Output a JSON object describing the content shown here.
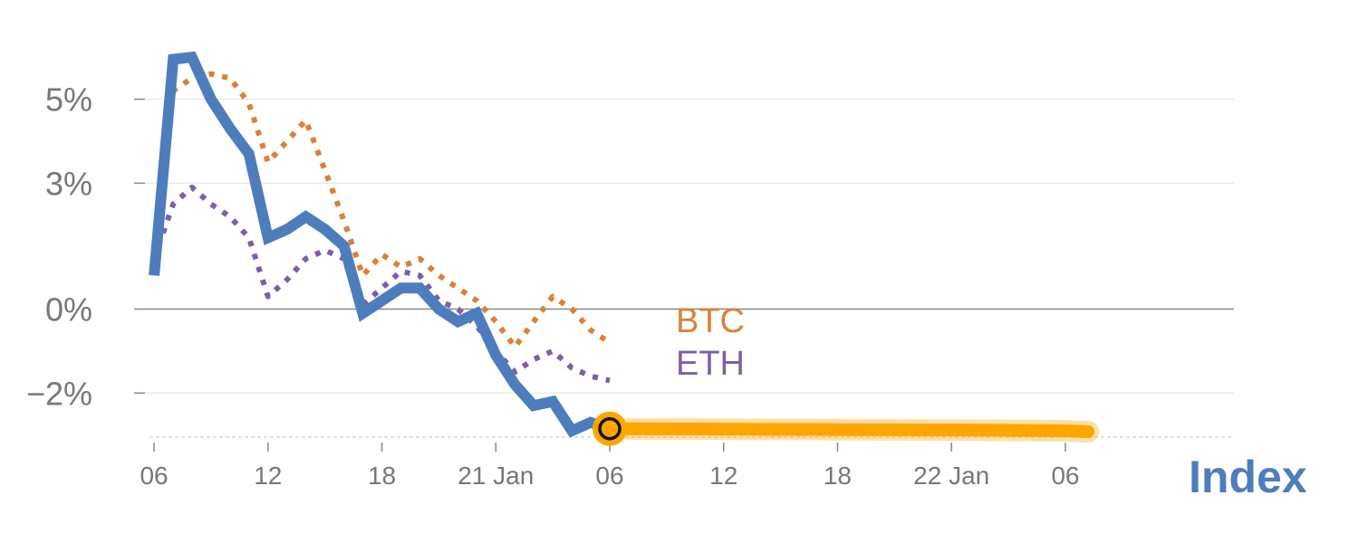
{
  "colors": {
    "index": "#4E7DBE",
    "btc": "#D98236",
    "eth": "#7D5EA6",
    "forecast": "#FFA500",
    "grid": "#E6E6E6",
    "zero": "#888888",
    "tick_text": "#777777"
  },
  "chart_data": {
    "type": "line",
    "title": "",
    "xlabel": "",
    "ylabel": "",
    "ylim": [
      -3.05,
      6.5
    ],
    "xlim": [
      -0.2,
      23.7
    ],
    "grid": true,
    "y_ticks": [
      {
        "value": 5,
        "label": "5%"
      },
      {
        "value": 3,
        "label": "3%"
      },
      {
        "value": 0,
        "label": "0%"
      },
      {
        "value": -2,
        "label": "−2%"
      }
    ],
    "x_ticks": [
      {
        "value": 0,
        "label": "06"
      },
      {
        "value": 2.5,
        "label": "12"
      },
      {
        "value": 5,
        "label": "18"
      },
      {
        "value": 7.5,
        "label": "21 Jan"
      },
      {
        "value": 10,
        "label": "06"
      },
      {
        "value": 12.5,
        "label": "12"
      },
      {
        "value": 15,
        "label": "18"
      },
      {
        "value": 17.5,
        "label": "22 Jan"
      },
      {
        "value": 20,
        "label": "06"
      }
    ],
    "series": [
      {
        "name": "Index",
        "key": "index",
        "style": "solid",
        "x": [
          0,
          0.42,
          0.83,
          1.25,
          1.67,
          2.08,
          2.5,
          2.92,
          3.33,
          3.75,
          4.17,
          4.58,
          5.0,
          5.42,
          5.83,
          6.25,
          6.67,
          7.08,
          7.5,
          7.92,
          8.33,
          8.75,
          9.17,
          9.58,
          10.0
        ],
        "y": [
          0.8,
          5.95,
          6.0,
          5.0,
          4.3,
          3.7,
          1.7,
          1.9,
          2.2,
          1.9,
          1.5,
          -0.1,
          0.2,
          0.5,
          0.5,
          0.0,
          -0.3,
          -0.1,
          -1.1,
          -1.8,
          -2.3,
          -2.2,
          -2.9,
          -2.7,
          -2.85
        ]
      },
      {
        "name": "BTC",
        "key": "btc",
        "style": "dotted",
        "x": [
          0,
          0.42,
          0.83,
          1.25,
          1.67,
          2.08,
          2.5,
          2.92,
          3.33,
          3.75,
          4.17,
          4.58,
          5.0,
          5.42,
          5.83,
          6.25,
          6.67,
          7.08,
          7.5,
          7.92,
          8.33,
          8.75,
          9.17,
          9.58,
          10.0
        ],
        "y": [
          1.0,
          5.2,
          5.5,
          5.6,
          5.5,
          4.9,
          3.5,
          4.0,
          4.5,
          3.3,
          2.1,
          0.8,
          1.3,
          1.0,
          1.2,
          0.8,
          0.5,
          0.2,
          -0.3,
          -0.9,
          -0.3,
          0.3,
          0.0,
          -0.5,
          -0.8
        ]
      },
      {
        "name": "ETH",
        "key": "eth",
        "style": "dotted",
        "x": [
          0,
          0.42,
          0.83,
          1.25,
          1.67,
          2.08,
          2.5,
          2.92,
          3.33,
          3.75,
          4.17,
          4.58,
          5.0,
          5.42,
          5.83,
          6.25,
          6.67,
          7.08,
          7.5,
          7.92,
          8.33,
          8.75,
          9.17,
          9.58,
          10.0
        ],
        "y": [
          1.2,
          2.5,
          2.9,
          2.5,
          2.2,
          1.7,
          0.3,
          0.7,
          1.2,
          1.4,
          1.2,
          0.1,
          0.5,
          0.9,
          0.8,
          0.2,
          0.0,
          -0.4,
          -1.0,
          -1.5,
          -1.2,
          -1.0,
          -1.4,
          -1.6,
          -1.7
        ]
      },
      {
        "name": "",
        "key": "forecast",
        "style": "band",
        "x": [
          10.0,
          12.5,
          15.0,
          17.5,
          20.0,
          20.5
        ],
        "y": [
          -2.85,
          -2.86,
          -2.87,
          -2.88,
          -2.9,
          -2.92
        ]
      }
    ],
    "labels": [
      {
        "text": "BTC",
        "key": "btc"
      },
      {
        "text": "ETH",
        "key": "eth"
      },
      {
        "text": "Index",
        "key": "index"
      }
    ],
    "current_marker": {
      "x": 10.0,
      "y": -2.85
    }
  }
}
